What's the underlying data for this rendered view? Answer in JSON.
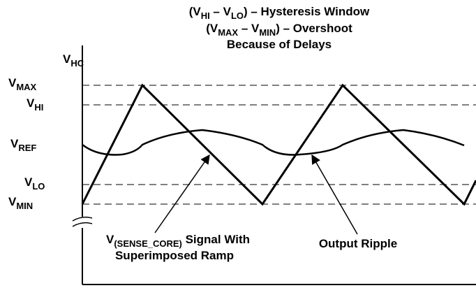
{
  "title": [
    [
      {
        "text": "(V"
      },
      {
        "text": "HI",
        "sub": true
      },
      {
        "text": " – V"
      },
      {
        "text": "LO",
        "sub": true
      },
      {
        "text": ") – Hysteresis Window"
      }
    ],
    [
      {
        "text": "(V"
      },
      {
        "text": "MAX",
        "sub": true
      },
      {
        "text": " – V"
      },
      {
        "text": "MIN",
        "sub": true
      },
      {
        "text": ") – Overshoot"
      }
    ],
    [
      {
        "text": "Because of Delays"
      }
    ]
  ],
  "levels": [
    [
      {
        "text": "V"
      },
      {
        "text": "HC",
        "sub": true
      }
    ],
    [
      {
        "text": "V"
      },
      {
        "text": "MAX",
        "sub": true
      }
    ],
    [
      {
        "text": "V"
      },
      {
        "text": "HI",
        "sub": true
      }
    ],
    [
      {
        "text": "V"
      },
      {
        "text": "REF",
        "sub": true
      }
    ],
    [
      {
        "text": "V"
      },
      {
        "text": "LO",
        "sub": true
      }
    ],
    [
      {
        "text": "V"
      },
      {
        "text": "MIN",
        "sub": true
      }
    ]
  ],
  "annotations": {
    "signal": [
      [
        {
          "text": "V"
        },
        {
          "text": "(SENSE_CORE)",
          "sub": true
        },
        {
          "text": " Signal With"
        }
      ],
      [
        {
          "text": "Superimposed Ramp"
        }
      ]
    ],
    "ripple": [
      [
        {
          "text": "Output Ripple"
        }
      ]
    ]
  }
}
